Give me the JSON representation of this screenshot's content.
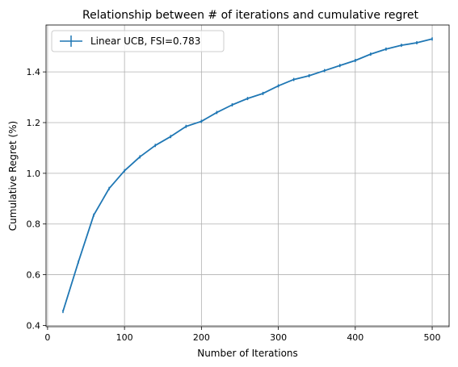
{
  "chart_data": {
    "type": "line",
    "title": "Relationship between # of iterations and cumulative regret",
    "xlabel": "Number of Iterations",
    "ylabel": "Cumulative Regret (%)",
    "xlim": [
      -2,
      522
    ],
    "ylim": [
      0.395,
      1.585
    ],
    "xticks": [
      0,
      100,
      200,
      300,
      400,
      500
    ],
    "xtick_labels": [
      "0",
      "100",
      "200",
      "300",
      "400",
      "500"
    ],
    "yticks": [
      0.4,
      0.6,
      0.8,
      1.0,
      1.2,
      1.4
    ],
    "ytick_labels": [
      "0.4",
      "0.6",
      "0.8",
      "1.0",
      "1.2",
      "1.4"
    ],
    "grid": true,
    "legend_position": "top-left",
    "color": "#1f77b4",
    "series": [
      {
        "name": "Linear UCB, FSI=0.783",
        "x": [
          20,
          40,
          60,
          80,
          100,
          120,
          140,
          160,
          180,
          200,
          220,
          240,
          260,
          280,
          300,
          320,
          340,
          360,
          380,
          400,
          420,
          440,
          460,
          480,
          500
        ],
        "y": [
          0.455,
          0.65,
          0.835,
          0.94,
          1.01,
          1.065,
          1.11,
          1.145,
          1.185,
          1.205,
          1.24,
          1.27,
          1.295,
          1.315,
          1.345,
          1.37,
          1.385,
          1.405,
          1.425,
          1.445,
          1.47,
          1.49,
          1.505,
          1.515,
          1.53
        ]
      }
    ]
  }
}
